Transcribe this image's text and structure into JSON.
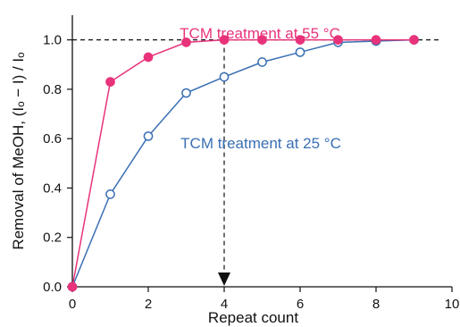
{
  "chart_data": {
    "type": "line",
    "xlabel": "Repeat count",
    "ylabel": "Removal of MeOH, (Iₒ − I) / Iₒ",
    "xlim": [
      0,
      10
    ],
    "ylim": [
      0,
      1.1
    ],
    "xticks": [
      "0",
      "2",
      "4",
      "6",
      "8",
      "10"
    ],
    "yticks": [
      "0.0",
      "0.2",
      "0.4",
      "0.6",
      "0.8",
      "1.0"
    ],
    "x": [
      0,
      1,
      2,
      3,
      4,
      5,
      6,
      7,
      8,
      9
    ],
    "series": [
      {
        "name": "TCM treatment at 55 °C",
        "color": "#e8337b",
        "marker": "filled-circle",
        "values": [
          0.0,
          0.83,
          0.93,
          0.99,
          1.0,
          1.0,
          1.0,
          1.0,
          1.0,
          1.0
        ]
      },
      {
        "name": "TCM treatment at 25 °C",
        "color": "#3a6fb3",
        "marker": "open-circle",
        "values": [
          0.0,
          0.375,
          0.61,
          0.785,
          0.85,
          0.91,
          0.95,
          0.99,
          0.995,
          1.0
        ]
      }
    ],
    "reference_lines": [
      {
        "orientation": "horizontal",
        "value": 1.0,
        "style": "dashed"
      },
      {
        "orientation": "vertical",
        "value": 4,
        "style": "dashed-arrow-down"
      }
    ],
    "grid": false
  }
}
